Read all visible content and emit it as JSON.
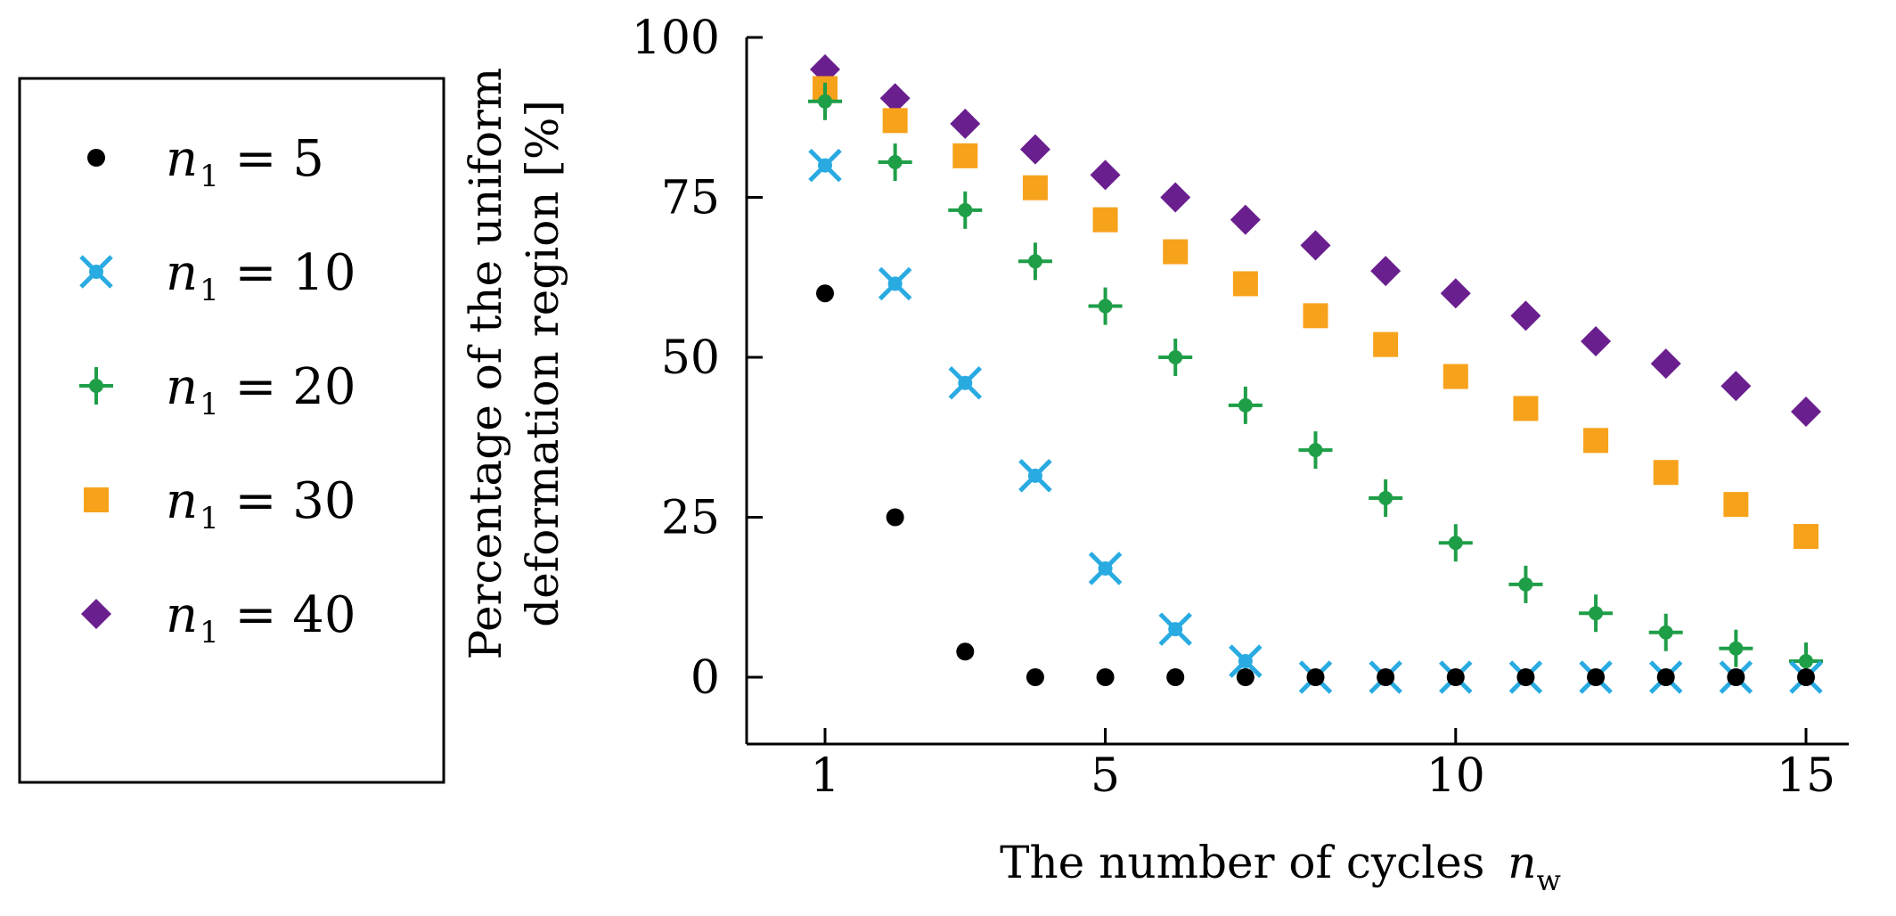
{
  "colors": {
    "n1_5": "#000000",
    "n1_10": "#29abe2",
    "n1_20": "#1f9e48",
    "n1_30": "#f7a21b",
    "n1_40": "#6a1f8f"
  },
  "chart_data": {
    "type": "scatter",
    "xlabel": "The number of cycles",
    "xlabel_var": "n",
    "xlabel_sub": "w",
    "ylabel_line1": "Percentage of the uniform",
    "ylabel_line2": "deformation region [%]",
    "xlim": [
      0.5,
      16
    ],
    "ylim": [
      -10,
      100
    ],
    "xticks": [
      1,
      5,
      10,
      15
    ],
    "yticks": [
      0,
      25,
      50,
      75,
      100
    ],
    "x": [
      1,
      2,
      3,
      4,
      5,
      6,
      7,
      8,
      9,
      10,
      11,
      12,
      13,
      14,
      15
    ],
    "series": [
      {
        "name": "n1 = 5",
        "var": "n",
        "sub": "1",
        "eq": " = 5",
        "marker": "circle",
        "values": [
          60,
          25,
          4,
          0,
          0,
          0,
          0,
          0,
          0,
          0,
          0,
          0,
          0,
          0,
          0
        ]
      },
      {
        "name": "n1 = 10",
        "var": "n",
        "sub": "1",
        "eq": " = 10",
        "marker": "xdot",
        "values": [
          80,
          61.5,
          46,
          31.5,
          17,
          7.5,
          2.5,
          0,
          0,
          0,
          0,
          0,
          0,
          0,
          0
        ]
      },
      {
        "name": "n1 = 20",
        "var": "n",
        "sub": "1",
        "eq": " = 20",
        "marker": "plusdot",
        "values": [
          90,
          80.5,
          73,
          65,
          58,
          50,
          42.5,
          35.5,
          28,
          21,
          14.5,
          10,
          7,
          4.5,
          2.5
        ]
      },
      {
        "name": "n1 = 30",
        "var": "n",
        "sub": "1",
        "eq": " = 30",
        "marker": "square",
        "values": [
          92,
          87,
          81.5,
          76.5,
          71.5,
          66.5,
          61.5,
          56.5,
          52,
          47,
          42,
          37,
          32,
          27,
          22
        ]
      },
      {
        "name": "n1 = 40",
        "var": "n",
        "sub": "1",
        "eq": " = 40",
        "marker": "diamond",
        "values": [
          95,
          90.5,
          86.5,
          82.5,
          78.5,
          75,
          71.5,
          67.5,
          63.5,
          60,
          56.5,
          52.5,
          49,
          45.5,
          41.5
        ]
      }
    ]
  }
}
